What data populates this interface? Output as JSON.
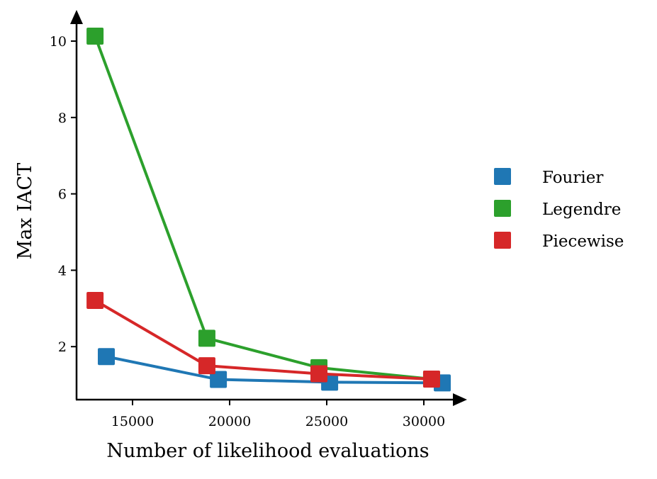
{
  "chart_data": {
    "type": "line",
    "title": "",
    "xlabel": "Number of likelihood evaluations",
    "ylabel": "Max IACT",
    "xlim": [
      12000,
      31700
    ],
    "ylim": [
      0.61,
      10.7
    ],
    "xticks": [
      15000,
      20000,
      25000,
      30000
    ],
    "xtick_labels": [
      "15000",
      "20000",
      "25000",
      "30000"
    ],
    "yticks": [
      2,
      4,
      6,
      8,
      10
    ],
    "ytick_labels": [
      "2",
      "4",
      "6",
      "8",
      "10"
    ],
    "grid": false,
    "legend_position": "right-outside",
    "series": [
      {
        "name": "Fourier",
        "color": "#1f77b4",
        "marker": "square",
        "x": [
          13650,
          19420,
          25150,
          30950
        ],
        "y": [
          1.74,
          1.14,
          1.07,
          1.05
        ]
      },
      {
        "name": "Legendre",
        "color": "#2ca02c",
        "marker": "square",
        "x": [
          13070,
          18830,
          24600,
          30400
        ],
        "y": [
          10.13,
          2.22,
          1.45,
          1.15
        ]
      },
      {
        "name": "Piecewise",
        "color": "#d62728",
        "marker": "square",
        "x": [
          13070,
          18830,
          24600,
          30400
        ],
        "y": [
          3.21,
          1.5,
          1.29,
          1.15
        ]
      }
    ]
  }
}
